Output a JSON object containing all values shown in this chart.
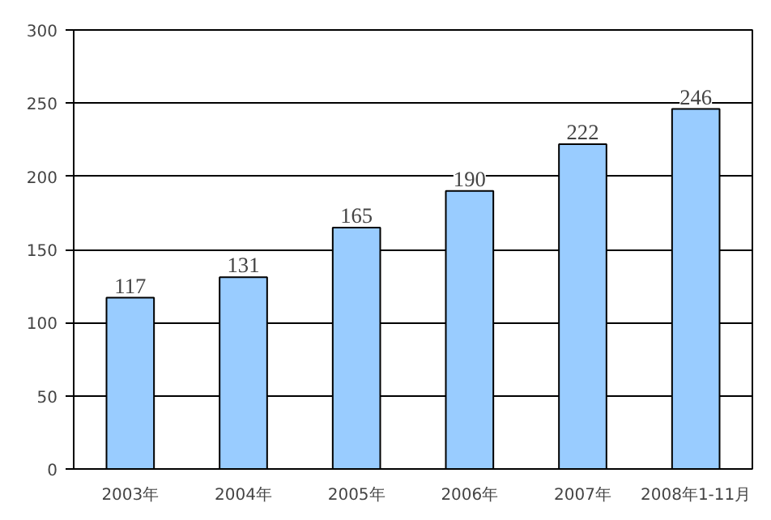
{
  "chart_data": {
    "type": "bar",
    "categories": [
      "2003年",
      "2004年",
      "2005年",
      "2006年",
      "2007年",
      "2008年1-11月"
    ],
    "values": [
      117,
      131,
      165,
      190,
      222,
      246
    ],
    "color": "#99ccff",
    "ylim": [
      0,
      300
    ],
    "yticks": [
      0,
      50,
      100,
      150,
      200,
      250,
      300
    ],
    "grid": "y",
    "data_labels": true
  }
}
